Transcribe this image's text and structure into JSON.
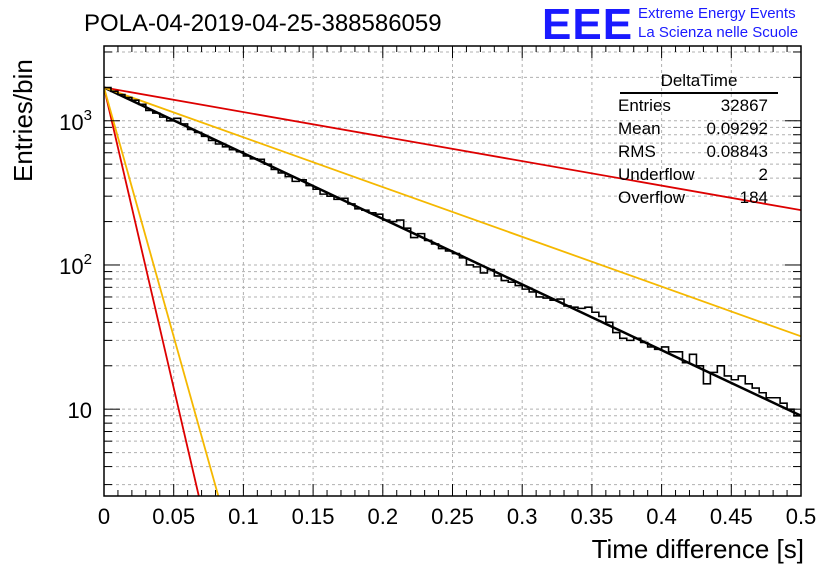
{
  "title": "POLA-04-2019-04-25-388586059",
  "logo": {
    "mark": "EEE",
    "line1": "Extreme Energy Events",
    "line2": "La Scienza nelle Scuole",
    "color": "#1a1aff"
  },
  "stats": {
    "name": "DeltaTime",
    "rows": [
      {
        "label": "Entries",
        "value": "32867"
      },
      {
        "label": "Mean",
        "value": "0.09292"
      },
      {
        "label": "RMS",
        "value": "0.08843"
      },
      {
        "label": "Underflow",
        "value": "2"
      },
      {
        "label": "Overflow",
        "value": "184"
      }
    ]
  },
  "chart_data": {
    "type": "line",
    "title": "POLA-04-2019-04-25-388586059",
    "xlabel": "Time difference [s]",
    "ylabel": "Entries/bin",
    "xlim": [
      0,
      0.5
    ],
    "ylim": [
      2.5,
      3300
    ],
    "yscale": "log",
    "grid": true,
    "x_ticks": [
      "0",
      "0.05",
      "0.1",
      "0.15",
      "0.2",
      "0.25",
      "0.3",
      "0.35",
      "0.4",
      "0.45",
      "0.5"
    ],
    "y_ticks": [
      {
        "value": 10,
        "base": "10",
        "exp": ""
      },
      {
        "value": 100,
        "base": "10",
        "exp": "2"
      },
      {
        "value": 1000,
        "base": "10",
        "exp": "3"
      }
    ],
    "histogram": {
      "name": "DeltaTime",
      "color": "#000000",
      "bin_width": 0.005,
      "counts": [
        1700,
        1600,
        1520,
        1450,
        1390,
        1300,
        1180,
        1130,
        1060,
        1000,
        1040,
        950,
        870,
        830,
        780,
        730,
        690,
        660,
        630,
        610,
        570,
        545,
        540,
        500,
        460,
        435,
        410,
        380,
        390,
        355,
        335,
        310,
        300,
        285,
        290,
        265,
        245,
        240,
        230,
        225,
        205,
        200,
        205,
        180,
        155,
        165,
        148,
        140,
        130,
        125,
        120,
        112,
        100,
        97,
        88,
        93,
        84,
        78,
        76,
        72,
        68,
        65,
        60,
        59,
        57,
        58,
        52,
        51,
        50,
        51,
        47,
        44,
        40,
        34,
        31,
        30,
        31,
        29,
        27,
        26,
        27,
        25,
        25,
        21,
        24,
        20,
        15,
        18,
        20,
        17,
        16,
        17,
        15,
        14,
        13,
        12,
        12,
        11,
        10,
        9
      ]
    },
    "series": [
      {
        "color": "#000000",
        "x": [
          0,
          0.5
        ],
        "y": [
          1700,
          9
        ]
      },
      {
        "color": "#dd0000",
        "x": [
          0,
          0.5
        ],
        "y": [
          1700,
          240
        ]
      },
      {
        "color": "#f5b800",
        "x": [
          0,
          0.5
        ],
        "y": [
          1700,
          32
        ]
      },
      {
        "color": "#dd0000",
        "x": [
          0,
          0.068
        ],
        "y": [
          1700,
          2.5
        ]
      },
      {
        "color": "#f5b800",
        "x": [
          0,
          0.082
        ],
        "y": [
          1700,
          2.5
        ]
      }
    ]
  }
}
